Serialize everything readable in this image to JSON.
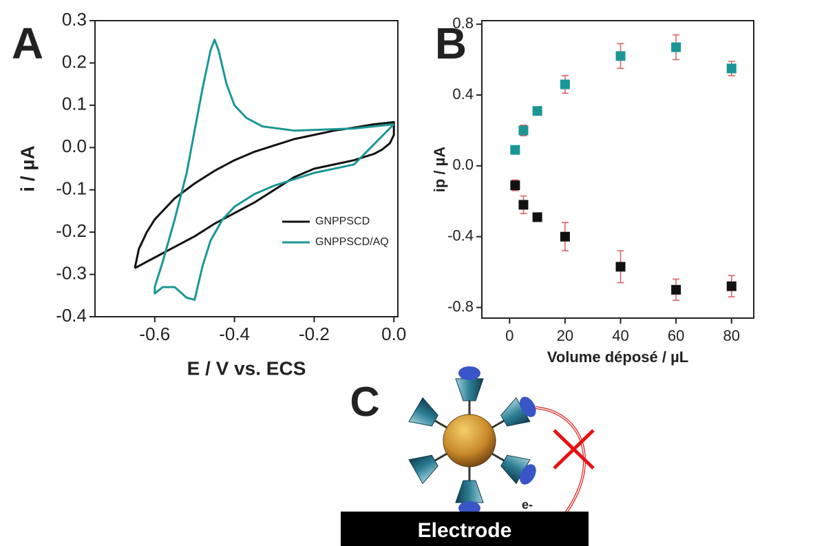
{
  "chart_data": [
    {
      "type": "line",
      "panel": "A",
      "x_label": "E / V vs. ECS",
      "y_label": "i / µA",
      "xlim": [
        -0.75,
        0.01
      ],
      "ylim": [
        -0.4,
        0.3
      ],
      "xticks": [
        -0.6,
        -0.4,
        -0.2,
        {
          "value": 0,
          "label": "0.0"
        }
      ],
      "yticks": [
        -0.4,
        -0.3,
        -0.2,
        -0.1,
        {
          "value": 0,
          "label": "0.0"
        },
        0.1,
        0.2,
        0.3
      ],
      "series": [
        {
          "name": "GNPPSCD",
          "color": "#111111",
          "x": [
            -0.65,
            -0.64,
            -0.62,
            -0.6,
            -0.55,
            -0.5,
            -0.45,
            -0.4,
            -0.35,
            -0.3,
            -0.25,
            -0.2,
            -0.15,
            -0.1,
            -0.05,
            0.0,
            0.0,
            -0.01,
            -0.03,
            -0.05,
            -0.1,
            -0.15,
            -0.2,
            -0.25,
            -0.3,
            -0.35,
            -0.4,
            -0.45,
            -0.5,
            -0.55,
            -0.6,
            -0.65
          ],
          "values": [
            -0.285,
            -0.24,
            -0.2,
            -0.17,
            -0.12,
            -0.085,
            -0.055,
            -0.03,
            -0.01,
            0.005,
            0.02,
            0.03,
            0.04,
            0.047,
            0.055,
            0.06,
            0.03,
            0.01,
            -0.005,
            -0.015,
            -0.03,
            -0.04,
            -0.05,
            -0.07,
            -0.1,
            -0.13,
            -0.155,
            -0.18,
            -0.21,
            -0.235,
            -0.26,
            -0.285
          ]
        },
        {
          "name": "GNPPSCD/AQ",
          "color": "#1a9696",
          "x": [
            0.0,
            -0.1,
            -0.2,
            -0.3,
            -0.35,
            -0.4,
            -0.43,
            -0.46,
            -0.48,
            -0.5,
            -0.52,
            -0.55,
            -0.58,
            -0.6,
            -0.6,
            -0.58,
            -0.55,
            -0.52,
            -0.5,
            -0.48,
            -0.46,
            -0.45,
            -0.44,
            -0.42,
            -0.4,
            -0.37,
            -0.33,
            -0.25,
            -0.1,
            0.0
          ],
          "values": [
            0.055,
            -0.04,
            -0.06,
            -0.09,
            -0.11,
            -0.14,
            -0.17,
            -0.22,
            -0.28,
            -0.36,
            -0.355,
            -0.33,
            -0.33,
            -0.345,
            -0.33,
            -0.27,
            -0.17,
            -0.06,
            0.04,
            0.14,
            0.23,
            0.255,
            0.23,
            0.15,
            0.1,
            0.07,
            0.05,
            0.04,
            0.045,
            0.055
          ]
        }
      ]
    },
    {
      "type": "scatter",
      "panel": "B",
      "x_label": "Volume déposé / µL",
      "y_label": "ip / µA",
      "xlim": [
        -10,
        88
      ],
      "ylim": [
        -0.86,
        0.82
      ],
      "xticks": [
        0,
        20,
        40,
        60,
        80
      ],
      "yticks": [
        -0.8,
        -0.4,
        {
          "value": 0,
          "label": "0.0"
        },
        0.4,
        0.8
      ],
      "error_color": "#e05a5a",
      "series": [
        {
          "color": "#1a9696",
          "x": [
            2,
            5,
            10,
            20,
            40,
            60,
            80
          ],
          "values": [
            0.09,
            0.2,
            0.31,
            0.46,
            0.62,
            0.67,
            0.55
          ],
          "errors": [
            0.02,
            0.03,
            0.02,
            0.05,
            0.07,
            0.07,
            0.04
          ]
        },
        {
          "color": "#111111",
          "x": [
            2,
            5,
            10,
            20,
            40,
            60,
            80
          ],
          "values": [
            -0.11,
            -0.22,
            -0.29,
            -0.4,
            -0.57,
            -0.7,
            -0.68
          ],
          "errors": [
            0.03,
            0.05,
            0.02,
            0.08,
            0.09,
            0.06,
            0.06
          ]
        }
      ]
    }
  ],
  "diagram": {
    "label": "C",
    "electron": "e-",
    "electrode": "Electrode"
  }
}
